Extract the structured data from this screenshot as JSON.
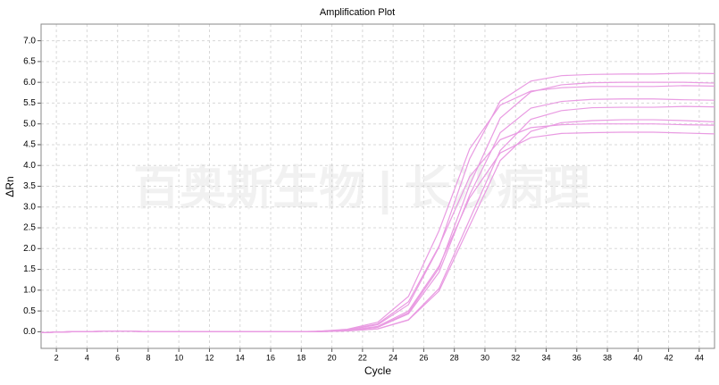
{
  "chart_data": {
    "type": "line",
    "title": "Amplification Plot",
    "xlabel": "Cycle",
    "ylabel": "ΔRn",
    "watermark": "百奥斯生物 | 长沙病理",
    "grid": true,
    "x": [
      1,
      3,
      5,
      7,
      9,
      11,
      13,
      15,
      17,
      19,
      21,
      23,
      25,
      27,
      29,
      31,
      33,
      35,
      37,
      39,
      41,
      43,
      45
    ],
    "xlim": [
      1,
      45
    ],
    "xticks": [
      2,
      4,
      6,
      8,
      10,
      12,
      14,
      16,
      18,
      20,
      22,
      24,
      26,
      28,
      30,
      32,
      34,
      36,
      38,
      40,
      42,
      44
    ],
    "ylim": [
      -0.4,
      7.4
    ],
    "yticks": [
      {
        "value": 0,
        "label": "0.0"
      },
      {
        "value": 0.5,
        "label": "0.5"
      },
      {
        "value": 1,
        "label": "1.0"
      },
      {
        "value": 1.5,
        "label": "1.5"
      },
      {
        "value": 2,
        "label": "2.0"
      },
      {
        "value": 2.5,
        "label": "2.5"
      },
      {
        "value": 3,
        "label": "3.0"
      },
      {
        "value": 3.5,
        "label": "3.5"
      },
      {
        "value": 4,
        "label": "4.0"
      },
      {
        "value": 4.5,
        "label": "4.5"
      },
      {
        "value": 5,
        "label": "5.0"
      },
      {
        "value": 5.5,
        "label": "5.5"
      },
      {
        "value": 6,
        "label": "6.0"
      },
      {
        "value": 6.5,
        "label": "6.5"
      },
      {
        "value": 7,
        "label": "7.0"
      }
    ],
    "series": [
      {
        "color": "#e99be2",
        "values": [
          -0.02,
          0,
          0.01,
          0.01,
          0,
          0,
          0,
          0,
          0,
          0.01,
          0.04,
          0.17,
          0.65,
          2.04,
          4.16,
          5.55,
          6.03,
          6.16,
          6.19,
          6.2,
          6.2,
          6.22,
          6.21
        ]
      },
      {
        "color": "#e99be2",
        "values": [
          -0.02,
          0,
          0.01,
          0.01,
          0,
          0,
          0,
          0,
          0,
          0.01,
          0.03,
          0.13,
          0.5,
          1.58,
          3.22,
          4.3,
          4.67,
          4.77,
          4.79,
          4.8,
          4.8,
          4.78,
          4.76
        ]
      },
      {
        "color": "#e99be2",
        "values": [
          -0.02,
          0,
          0.01,
          0.01,
          0,
          0,
          0,
          0,
          0,
          0.01,
          0.06,
          0.23,
          0.85,
          2.43,
          4.4,
          5.45,
          5.79,
          5.87,
          5.9,
          5.9,
          5.9,
          5.92,
          5.91
        ]
      },
      {
        "color": "#e99be2",
        "values": [
          -0.02,
          0,
          0.01,
          0.01,
          0,
          0,
          0,
          0,
          0,
          0.01,
          0.05,
          0.19,
          0.72,
          2.06,
          3.73,
          4.62,
          4.91,
          4.98,
          5.0,
          5.0,
          5.0,
          4.98,
          4.97
        ]
      },
      {
        "color": "#e99be2",
        "values": [
          -0.02,
          0,
          0.01,
          0.01,
          0,
          0,
          0,
          0,
          0,
          0.01,
          0.03,
          0.11,
          0.43,
          1.43,
          3.29,
          4.79,
          5.38,
          5.54,
          5.59,
          5.6,
          5.6,
          5.58,
          5.57
        ]
      },
      {
        "color": "#e99be2",
        "values": [
          -0.02,
          0,
          0.01,
          0.01,
          0,
          0,
          0,
          0,
          0,
          0.01,
          0.03,
          0.11,
          0.46,
          1.53,
          3.53,
          5.14,
          5.77,
          5.94,
          5.99,
          6.0,
          6.0,
          6.0,
          5.98
        ]
      },
      {
        "color": "#e99be2",
        "values": [
          -0.02,
          0,
          0.01,
          0.01,
          0,
          0,
          0,
          0,
          0,
          0,
          0.02,
          0.07,
          0.28,
          0.98,
          2.55,
          4.12,
          4.82,
          5.03,
          5.08,
          5.1,
          5.1,
          5.08,
          5.05
        ]
      },
      {
        "color": "#e99be2",
        "values": [
          -0.02,
          0,
          0.01,
          0.01,
          0,
          0,
          0,
          0,
          0,
          0,
          0.02,
          0.07,
          0.29,
          1.04,
          2.7,
          4.36,
          5.11,
          5.32,
          5.39,
          5.4,
          5.4,
          5.42,
          5.41
        ]
      }
    ]
  }
}
